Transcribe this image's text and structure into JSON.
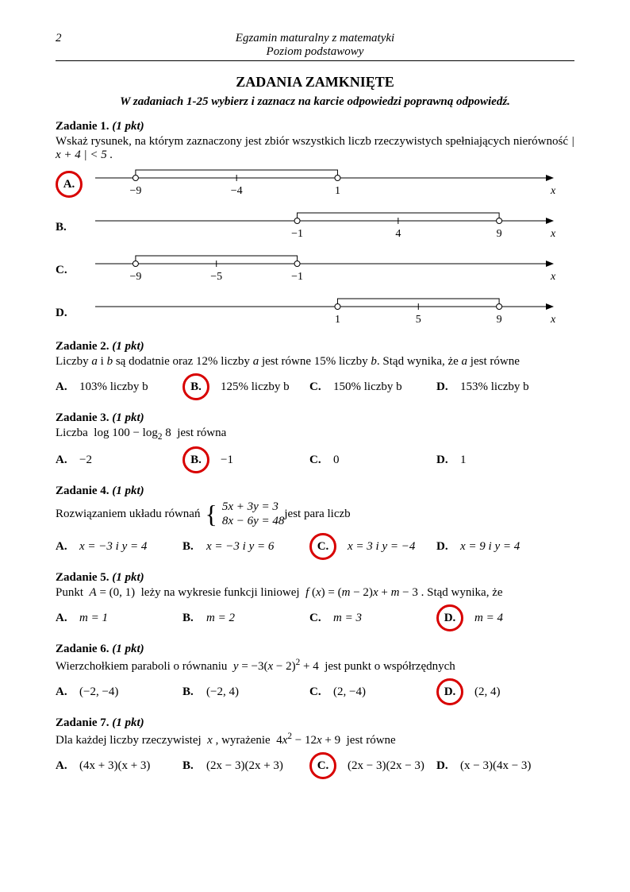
{
  "page_number": "2",
  "header_line1": "Egzamin maturalny z matematyki",
  "header_line2": "Poziom podstawowy",
  "section_title": "ZADANIA ZAMKNIĘTE",
  "instructions": "W zadaniach 1-25 wybierz i zaznacz na karcie odpowiedzi poprawną odpowiedź.",
  "circle_color": "#d80000",
  "zad1": {
    "title": "Zadanie 1.",
    "pkt": "(1 pkt)",
    "text1": "Wskaż rysunek, na którym zaznaczony jest zbiór wszystkich liczb rzeczywistych spełniających nierówność ",
    "ineq": "| x + 4 | < 5 .",
    "correct": "A",
    "lines": [
      {
        "label": "A.",
        "ticks": [
          {
            "x": -9,
            "lab": "−9",
            "open": true
          },
          {
            "x": -4,
            "lab": "−4"
          },
          {
            "x": 1,
            "lab": "1",
            "open": true
          }
        ],
        "interval": [
          -9,
          1
        ]
      },
      {
        "label": "B.",
        "ticks": [
          {
            "x": -1,
            "lab": "−1",
            "open": true
          },
          {
            "x": 4,
            "lab": "4"
          },
          {
            "x": 9,
            "lab": "9",
            "open": true
          }
        ],
        "interval": [
          -1,
          9
        ]
      },
      {
        "label": "C.",
        "ticks": [
          {
            "x": -9,
            "lab": "−9",
            "open": true
          },
          {
            "x": -5,
            "lab": "−5"
          },
          {
            "x": -1,
            "lab": "−1",
            "open": true
          }
        ],
        "interval": [
          -9,
          -1
        ]
      },
      {
        "label": "D.",
        "ticks": [
          {
            "x": 1,
            "lab": "1",
            "open": true
          },
          {
            "x": 5,
            "lab": "5"
          },
          {
            "x": 9,
            "lab": "9",
            "open": true
          }
        ],
        "interval": [
          1,
          9
        ]
      }
    ],
    "xrange": [
      -11,
      11
    ],
    "xlabel": "x"
  },
  "zad2": {
    "title": "Zadanie 2.",
    "pkt": "(1 pkt)",
    "text": "Liczby a i b są dodatnie oraz 12% liczby a jest równe 15% liczby b. Stąd wynika, że a jest równe",
    "opts": [
      "103% liczby b",
      "125% liczby b",
      "150%  liczby b",
      "153% liczby b"
    ],
    "correct": "B"
  },
  "zad3": {
    "title": "Zadanie 3.",
    "pkt": "(1 pkt)",
    "text": "Liczba  log 100 − log₂ 8  jest równa",
    "opts": [
      "−2",
      "−1",
      "0",
      "1"
    ],
    "correct": "B"
  },
  "zad4": {
    "title": "Zadanie 4.",
    "pkt": "(1 pkt)",
    "text1": "Rozwiązaniem układu równań ",
    "eq1": "5x + 3y = 3",
    "eq2": "8x − 6y = 48",
    "text2": "  jest para liczb",
    "opts": [
      "x = −3  i  y = 4",
      "x = −3  i  y = 6",
      "x = 3  i  y = −4",
      "x = 9  i  y = 4"
    ],
    "correct": "C"
  },
  "zad5": {
    "title": "Zadanie 5.",
    "pkt": "(1 pkt)",
    "text": "Punkt  A = (0, 1)  leży na wykresie funkcji liniowej  f (x) = (m − 2)x + m − 3 . Stąd wynika, że",
    "opts": [
      "m = 1",
      "m = 2",
      "m = 3",
      "m = 4"
    ],
    "correct": "D"
  },
  "zad6": {
    "title": "Zadanie 6.",
    "pkt": "(1 pkt)",
    "text": "Wierzchołkiem paraboli o równaniu  y = −3(x − 2)² + 4  jest punkt o współrzędnych",
    "opts": [
      "(−2, −4)",
      "(−2, 4)",
      "(2, −4)",
      "(2, 4)"
    ],
    "correct": "D"
  },
  "zad7": {
    "title": "Zadanie 7.",
    "pkt": "(1 pkt)",
    "text": "Dla każdej liczby rzeczywistej  x , wyrażenie  4x² − 12x + 9  jest równe",
    "opts": [
      "(4x + 3)(x + 3)",
      "(2x − 3)(2x + 3)",
      "(2x − 3)(2x − 3)",
      "(x − 3)(4x − 3)"
    ],
    "correct": "C"
  },
  "labels": [
    "A.",
    "B.",
    "C.",
    "D."
  ]
}
